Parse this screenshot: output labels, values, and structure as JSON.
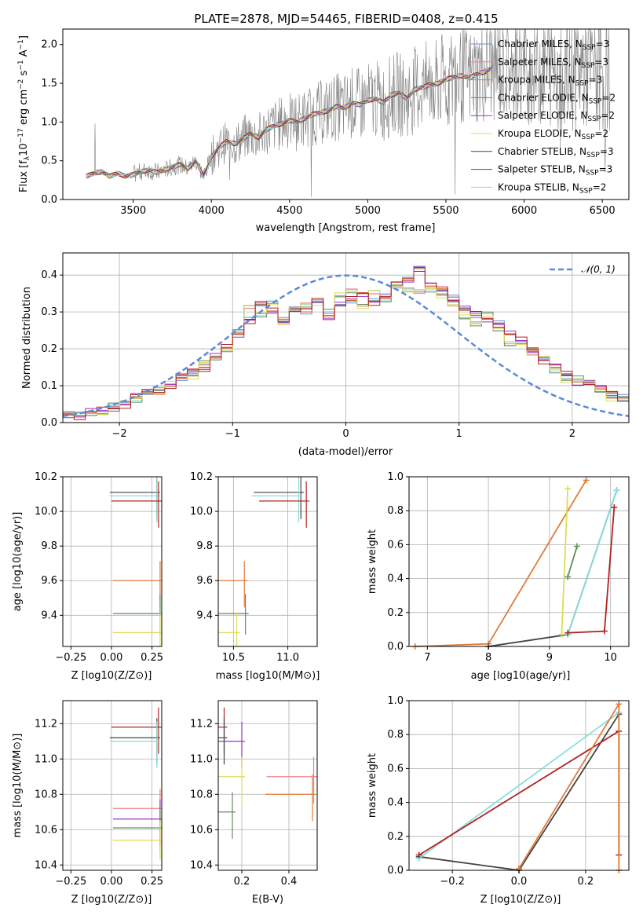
{
  "figure": {
    "title": "PLATE=2878, MJD=54465, FIBERID=0408, z=0.415"
  },
  "colors": {
    "Chabrier MILES": "#6f8fd8",
    "Salpeter MILES": "#f08080",
    "Kroupa MILES": "#e07b39",
    "Chabrier ELODIE": "#5f8f5f",
    "Salpeter ELODIE": "#9932cc",
    "Kroupa ELODIE": "#dddd55",
    "Chabrier STELIB": "#444444",
    "Salpeter STELIB": "#b22222",
    "Kroupa STELIB": "#88dddd",
    "spectrum": "#808080",
    "gaussian": "#5b8ad8"
  },
  "chart_data": [
    {
      "id": "spectrum",
      "type": "line",
      "title": "PLATE=2878, MJD=54465, FIBERID=0408, z=0.415",
      "xlabel": "wavelength [Angstrom, rest frame]",
      "ylabel": "Flux [f_λ 10^-17 erg cm^-2 s^-1 A^-1]",
      "xlim": [
        3050,
        6670
      ],
      "ylim": [
        0,
        2.2
      ],
      "xticks": [
        3500,
        4000,
        4500,
        5000,
        5500,
        6000,
        6500
      ],
      "yticks": [
        0.0,
        0.5,
        1.0,
        1.5,
        2.0
      ],
      "grid": false,
      "legend_position": "top-right",
      "legend": [
        "Chabrier MILES, N_SSP=3",
        "Salpeter MILES, N_SSP=3",
        "Kroupa MILES, N_SSP=3",
        "Chabrier ELODIE, N_SSP=2",
        "Salpeter ELODIE, N_SSP=2",
        "Kroupa ELODIE, N_SSP=2",
        "Chabrier STELIB, N_SSP=3",
        "Salpeter STELIB, N_SSP=3",
        "Kroupa STELIB, N_SSP=2"
      ],
      "model_x": [
        3200,
        3250,
        3300,
        3350,
        3400,
        3450,
        3500,
        3550,
        3600,
        3650,
        3700,
        3750,
        3800,
        3850,
        3900,
        3950,
        4000,
        4050,
        4100,
        4150,
        4200,
        4250,
        4300,
        4350,
        4400,
        4450,
        4500,
        4550,
        4600,
        4650,
        4700,
        4750,
        4800,
        4850,
        4900,
        4950,
        5000,
        5050,
        5100,
        5150,
        5200,
        5250,
        5300,
        5350,
        5400,
        5450,
        5500,
        5550,
        5600,
        5650,
        5700,
        5750,
        5800
      ],
      "model_y": [
        0.3,
        0.34,
        0.36,
        0.3,
        0.34,
        0.3,
        0.32,
        0.36,
        0.38,
        0.35,
        0.38,
        0.42,
        0.45,
        0.4,
        0.5,
        0.3,
        0.55,
        0.68,
        0.75,
        0.72,
        0.78,
        0.85,
        0.8,
        0.9,
        0.95,
        0.98,
        1.02,
        1.0,
        1.05,
        1.1,
        1.12,
        1.15,
        1.2,
        1.18,
        1.25,
        1.22,
        1.28,
        1.3,
        1.25,
        1.35,
        1.38,
        1.3,
        1.42,
        1.45,
        1.48,
        1.5,
        1.55,
        1.58,
        1.6,
        1.57,
        1.62,
        1.65,
        1.7
      ]
    },
    {
      "id": "residuals",
      "type": "bar",
      "xlabel": "(data-model)/error",
      "ylabel": "Normed distribution",
      "xlim": [
        -2.5,
        2.5
      ],
      "ylim": [
        0,
        0.46
      ],
      "xticks": [
        -2,
        -1,
        0,
        1,
        2
      ],
      "yticks": [
        0.0,
        0.1,
        0.2,
        0.3,
        0.4
      ],
      "grid": true,
      "legend_position": "top-right",
      "legend": [
        "N(0,1)"
      ],
      "bin_width": 0.1,
      "histograms": [
        {
          "name": "Chabrier STELIB",
          "values": [
            0.02,
            0.02,
            0.03,
            0.03,
            0.04,
            0.05,
            0.07,
            0.08,
            0.09,
            0.1,
            0.12,
            0.14,
            0.15,
            0.18,
            0.2,
            0.24,
            0.28,
            0.32,
            0.3,
            0.28,
            0.31,
            0.3,
            0.33,
            0.29,
            0.32,
            0.33,
            0.35,
            0.33,
            0.34,
            0.37,
            0.39,
            0.42,
            0.37,
            0.36,
            0.34,
            0.31,
            0.29,
            0.28,
            0.27,
            0.24,
            0.22,
            0.2,
            0.17,
            0.15,
            0.13,
            0.11,
            0.11,
            0.09,
            0.08,
            0.07
          ]
        },
        {
          "name": "Kroupa STELIB",
          "values": [
            0.03,
            0.02,
            0.02,
            0.03,
            0.05,
            0.05,
            0.06,
            0.09,
            0.08,
            0.1,
            0.13,
            0.13,
            0.16,
            0.17,
            0.2,
            0.25,
            0.31,
            0.29,
            0.33,
            0.27,
            0.3,
            0.32,
            0.33,
            0.3,
            0.34,
            0.36,
            0.32,
            0.35,
            0.33,
            0.38,
            0.36,
            0.35,
            0.36,
            0.35,
            0.32,
            0.28,
            0.27,
            0.3,
            0.25,
            0.21,
            0.22,
            0.19,
            0.17,
            0.14,
            0.12,
            0.12,
            0.1,
            0.09,
            0.07,
            0.06
          ]
        }
      ],
      "gaussian": {
        "mu": 0,
        "sigma": 1
      }
    },
    {
      "id": "age-vs-Z",
      "type": "scatter",
      "xlabel": "Z [log10(Z/Z⊙)]",
      "ylabel": "age [log10(age/yr)]",
      "xlim": [
        -0.3,
        0.31
      ],
      "ylim": [
        9.22,
        10.2
      ],
      "xticks": [
        -0.25,
        0.0,
        0.25
      ],
      "yticks": [
        9.4,
        9.6,
        9.8,
        10.0,
        10.2
      ],
      "grid": true,
      "points": [
        {
          "series": "Chabrier STELIB",
          "x": 0.28,
          "y": 10.11
        },
        {
          "series": "Kroupa STELIB",
          "x": 0.28,
          "y": 10.09
        },
        {
          "series": "Salpeter STELIB",
          "x": 0.29,
          "y": 10.06
        },
        {
          "series": "Kroupa MILES",
          "x": 0.3,
          "y": 9.6
        },
        {
          "series": "Chabrier ELODIE",
          "x": 0.3,
          "y": 9.41
        },
        {
          "series": "Kroupa ELODIE",
          "x": 0.3,
          "y": 9.3
        }
      ]
    },
    {
      "id": "age-vs-mass",
      "type": "scatter",
      "xlabel": "mass [log10(M/M⊙)]",
      "ylabel": "",
      "xlim": [
        10.36,
        11.27
      ],
      "ylim": [
        9.22,
        10.2
      ],
      "xticks": [
        10.5,
        11.0
      ],
      "yticks": [
        9.4,
        9.6,
        9.8,
        10.0,
        10.2
      ],
      "grid": true,
      "points": [
        {
          "series": "Chabrier STELIB",
          "x": 11.12,
          "y": 10.11
        },
        {
          "series": "Kroupa STELIB",
          "x": 11.1,
          "y": 10.09
        },
        {
          "series": "Salpeter STELIB",
          "x": 11.17,
          "y": 10.06
        },
        {
          "series": "Kroupa MILES",
          "x": 10.6,
          "y": 9.6
        },
        {
          "series": "Chabrier ELODIE",
          "x": 10.61,
          "y": 9.41
        },
        {
          "series": "Kroupa ELODIE",
          "x": 10.53,
          "y": 9.3
        }
      ]
    },
    {
      "id": "massweight-vs-age",
      "type": "line",
      "xlabel": "age [log10(age/yr)]",
      "ylabel": "mass weight",
      "xlim": [
        6.7,
        10.3
      ],
      "ylim": [
        0,
        1
      ],
      "xticks": [
        7,
        8,
        9,
        10
      ],
      "yticks": [
        0.0,
        0.2,
        0.4,
        0.6,
        0.8,
        1.0
      ],
      "grid": true,
      "series": [
        {
          "name": "Kroupa MILES",
          "x": [
            6.8,
            8.0,
            9.6
          ],
          "y": [
            0.0,
            0.015,
            0.98
          ]
        },
        {
          "name": "Chabrier STELIB",
          "x": [
            8.0,
            9.3,
            10.1
          ],
          "y": [
            0.0,
            0.07,
            0.92
          ]
        },
        {
          "name": "Kroupa STELIB",
          "x": [
            9.3,
            10.1
          ],
          "y": [
            0.07,
            0.92
          ]
        },
        {
          "name": "Salpeter STELIB",
          "x": [
            9.3,
            9.9,
            10.06
          ],
          "y": [
            0.08,
            0.09,
            0.82
          ]
        },
        {
          "name": "Kroupa ELODIE",
          "x": [
            9.2,
            9.3
          ],
          "y": [
            0.07,
            0.93
          ]
        },
        {
          "name": "Chabrier ELODIE",
          "x": [
            9.3,
            9.45
          ],
          "y": [
            0.41,
            0.59
          ]
        }
      ]
    },
    {
      "id": "mass-vs-Z",
      "type": "scatter",
      "xlabel": "Z [log10(Z/Z⊙)]",
      "ylabel": "mass [log10(M/M⊙)]",
      "xlim": [
        -0.3,
        0.31
      ],
      "ylim": [
        10.37,
        11.33
      ],
      "xticks": [
        -0.25,
        0.0,
        0.25
      ],
      "yticks": [
        10.4,
        10.6,
        10.8,
        11.0,
        11.2
      ],
      "grid": true,
      "points": [
        {
          "series": "Salpeter STELIB",
          "x": 0.29,
          "y": 11.18
        },
        {
          "series": "Chabrier STELIB",
          "x": 0.28,
          "y": 11.12
        },
        {
          "series": "Kroupa STELIB",
          "x": 0.28,
          "y": 11.1
        },
        {
          "series": "Salpeter MILES",
          "x": 0.3,
          "y": 10.72
        },
        {
          "series": "Salpeter ELODIE",
          "x": 0.3,
          "y": 10.66
        },
        {
          "series": "Chabrier ELODIE",
          "x": 0.3,
          "y": 10.61
        },
        {
          "series": "Kroupa ELODIE",
          "x": 0.3,
          "y": 10.54
        }
      ]
    },
    {
      "id": "mass-vs-ebv",
      "type": "scatter",
      "xlabel": "E(B-V)",
      "ylabel": "",
      "xlim": [
        0.1,
        0.52
      ],
      "ylim": [
        10.37,
        11.33
      ],
      "xticks": [
        0.2,
        0.4
      ],
      "yticks": [
        10.4,
        10.6,
        10.8,
        11.0,
        11.2
      ],
      "grid": true,
      "points": [
        {
          "series": "Salpeter STELIB",
          "x": 0.125,
          "y": 11.18
        },
        {
          "series": "Chabrier STELIB",
          "x": 0.125,
          "y": 11.12
        },
        {
          "series": "Chabrier ELODIE",
          "x": 0.16,
          "y": 10.7
        },
        {
          "series": "Salpeter ELODIE",
          "x": 0.2,
          "y": 11.1
        },
        {
          "series": "Kroupa ELODIE",
          "x": 0.2,
          "y": 10.9
        },
        {
          "series": "Kroupa MILES",
          "x": 0.5,
          "y": 10.8
        },
        {
          "series": "Salpeter MILES",
          "x": 0.505,
          "y": 10.9
        }
      ]
    },
    {
      "id": "massweight-vs-Z",
      "type": "line",
      "xlabel": "Z [log10(Z/Z⊙)]",
      "ylabel": "mass weight",
      "xlim": [
        -0.33,
        0.33
      ],
      "ylim": [
        0,
        1
      ],
      "xticks": [
        -0.2,
        0.0,
        0.2
      ],
      "yticks": [
        0.0,
        0.2,
        0.4,
        0.6,
        0.8,
        1.0
      ],
      "grid": true,
      "series": [
        {
          "name": "Chabrier STELIB",
          "x": [
            -0.3,
            0.0,
            0.3
          ],
          "y": [
            0.08,
            0.0,
            0.92
          ]
        },
        {
          "name": "Kroupa STELIB",
          "x": [
            -0.3,
            0.3
          ],
          "y": [
            0.07,
            0.93
          ]
        },
        {
          "name": "Salpeter STELIB",
          "x": [
            -0.3,
            0.3,
            0.3
          ],
          "y": [
            0.09,
            0.82,
            0.09
          ]
        },
        {
          "name": "Kroupa MILES",
          "x": [
            0.0,
            0.3,
            0.3
          ],
          "y": [
            0.01,
            0.98,
            0.0
          ]
        }
      ]
    }
  ]
}
